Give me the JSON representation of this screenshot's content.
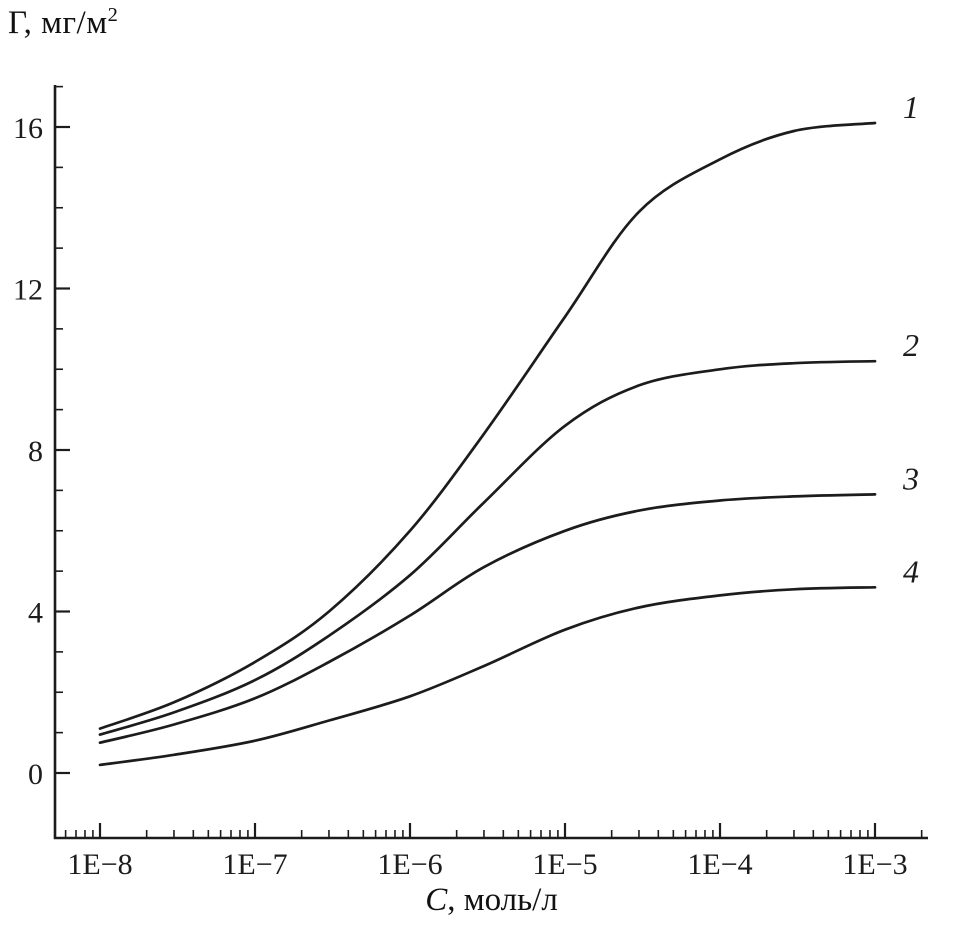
{
  "axis_labels": {
    "y_symbol": "Γ",
    "y_rest": ", мг/м",
    "y_sup": "2",
    "x_symbol": "C",
    "x_rest": ", моль/л"
  },
  "chart_data": {
    "type": "line",
    "title": "",
    "xlabel": "C, моль/л",
    "ylabel": "Γ, мг/м²",
    "x_scale": "log10",
    "xlim": [
      5.1e-09,
      0.0022
    ],
    "ylim": [
      -1.6,
      17.0
    ],
    "grid": false,
    "legend_position": "curve-end-labels",
    "line_color": "#1c1c1c",
    "x_ticks": [
      {
        "value": 1e-08,
        "label": "1E−8"
      },
      {
        "value": 1e-07,
        "label": "1E−7"
      },
      {
        "value": 1e-06,
        "label": "1E−6"
      },
      {
        "value": 1e-05,
        "label": "1E−5"
      },
      {
        "value": 0.0001,
        "label": "1E−4"
      },
      {
        "value": 0.001,
        "label": "1E−3"
      }
    ],
    "y_ticks": [
      {
        "value": 0,
        "label": "0"
      },
      {
        "value": 4,
        "label": "4"
      },
      {
        "value": 8,
        "label": "8"
      },
      {
        "value": 12,
        "label": "12"
      },
      {
        "value": 16,
        "label": "16"
      }
    ],
    "y_minor_step": 1,
    "series": [
      {
        "label": "1",
        "plateau": 16.1,
        "points": [
          [
            1e-08,
            1.1
          ],
          [
            3e-08,
            1.75
          ],
          [
            1e-07,
            2.75
          ],
          [
            3e-07,
            4.0
          ],
          [
            1e-06,
            6.0
          ],
          [
            3e-06,
            8.4
          ],
          [
            1e-05,
            11.3
          ],
          [
            3e-05,
            13.9
          ],
          [
            0.0001,
            15.2
          ],
          [
            0.0003,
            15.9
          ],
          [
            0.001,
            16.1
          ]
        ]
      },
      {
        "label": "2",
        "plateau": 10.2,
        "points": [
          [
            1e-08,
            0.95
          ],
          [
            3e-08,
            1.5
          ],
          [
            1e-07,
            2.3
          ],
          [
            3e-07,
            3.4
          ],
          [
            1e-06,
            4.9
          ],
          [
            3e-06,
            6.7
          ],
          [
            1e-05,
            8.6
          ],
          [
            3e-05,
            9.6
          ],
          [
            0.0001,
            10.0
          ],
          [
            0.0003,
            10.15
          ],
          [
            0.001,
            10.2
          ]
        ]
      },
      {
        "label": "3",
        "plateau": 6.9,
        "points": [
          [
            1e-08,
            0.75
          ],
          [
            3e-08,
            1.2
          ],
          [
            1e-07,
            1.85
          ],
          [
            3e-07,
            2.75
          ],
          [
            1e-06,
            3.9
          ],
          [
            3e-06,
            5.1
          ],
          [
            1e-05,
            6.0
          ],
          [
            3e-05,
            6.5
          ],
          [
            0.0001,
            6.75
          ],
          [
            0.0003,
            6.85
          ],
          [
            0.001,
            6.9
          ]
        ]
      },
      {
        "label": "4",
        "plateau": 4.6,
        "points": [
          [
            1e-08,
            0.2
          ],
          [
            3e-08,
            0.45
          ],
          [
            1e-07,
            0.8
          ],
          [
            3e-07,
            1.3
          ],
          [
            1e-06,
            1.9
          ],
          [
            3e-06,
            2.65
          ],
          [
            1e-05,
            3.55
          ],
          [
            3e-05,
            4.1
          ],
          [
            0.0001,
            4.4
          ],
          [
            0.0003,
            4.55
          ],
          [
            0.001,
            4.6
          ]
        ]
      }
    ]
  }
}
